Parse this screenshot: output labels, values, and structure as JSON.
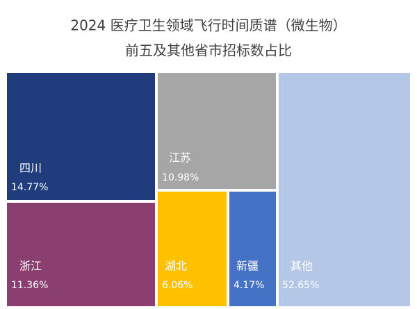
{
  "chart_data": {
    "type": "treemap",
    "title": "2024 医疗卫生领域飞行时间质谱（微生物）",
    "subtitle": "前五及其他省市招标数占比",
    "categories": [
      "四川",
      "浙江",
      "江苏",
      "湖北",
      "新疆",
      "其他"
    ],
    "values": [
      14.77,
      11.36,
      10.98,
      6.06,
      4.17,
      52.65
    ],
    "value_labels": [
      "14.77%",
      "11.36%",
      "10.98%",
      "6.06%",
      "4.17%",
      "52.65%"
    ],
    "colors": [
      "#203c7c",
      "#8b3f70",
      "#a6a6a6",
      "#ffc000",
      "#4472c4",
      "#b4c7e7"
    ]
  }
}
